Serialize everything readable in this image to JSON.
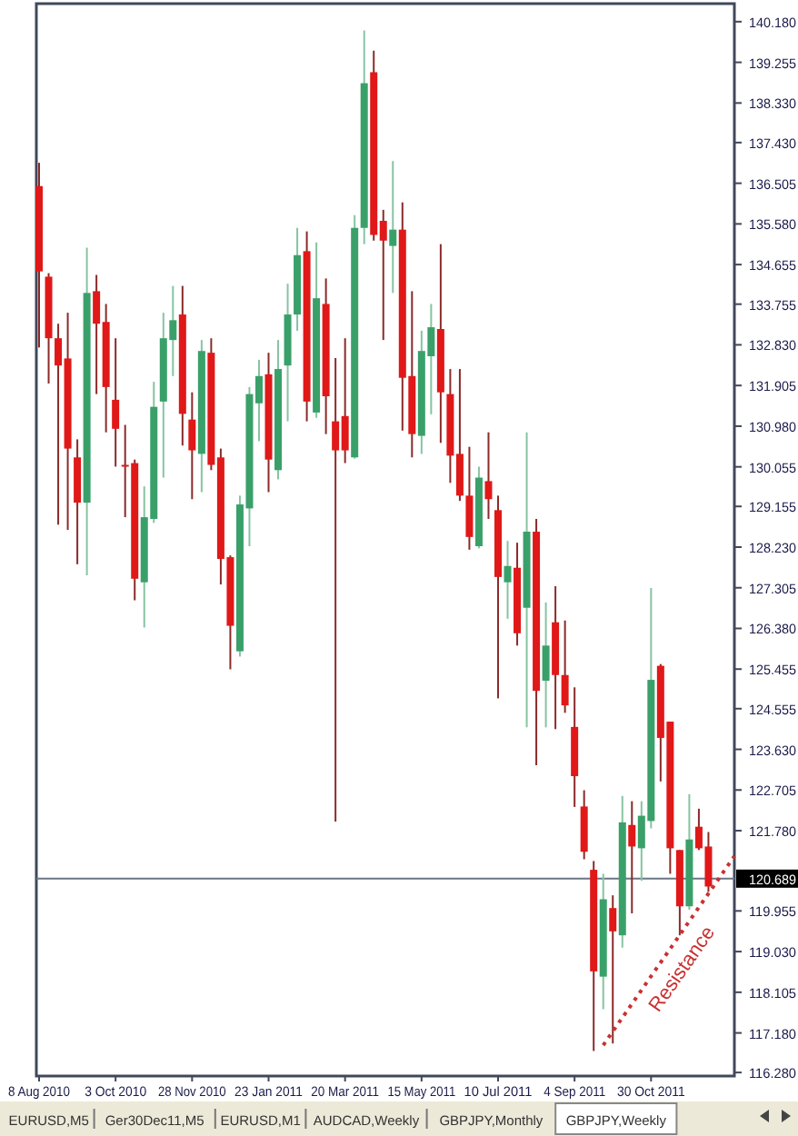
{
  "chart_data": {
    "type": "candlestick",
    "x": [
      "2010-08-08",
      "2010-08-15",
      "2010-08-22",
      "2010-08-29",
      "2010-09-05",
      "2010-09-12",
      "2010-09-19",
      "2010-09-26",
      "2010-10-03",
      "2010-10-10",
      "2010-10-17",
      "2010-10-24",
      "2010-10-31",
      "2010-11-07",
      "2010-11-14",
      "2010-11-21",
      "2010-11-28",
      "2010-12-05",
      "2010-12-12",
      "2010-12-19",
      "2010-12-26",
      "2011-01-02",
      "2011-01-09",
      "2011-01-16",
      "2011-01-23",
      "2011-01-30",
      "2011-02-06",
      "2011-02-13",
      "2011-02-20",
      "2011-02-27",
      "2011-03-06",
      "2011-03-13",
      "2011-03-20",
      "2011-03-27",
      "2011-04-03",
      "2011-04-10",
      "2011-04-17",
      "2011-04-24",
      "2011-05-01",
      "2011-05-08",
      "2011-05-15",
      "2011-05-22",
      "2011-05-29",
      "2011-06-05",
      "2011-06-12",
      "2011-06-19",
      "2011-06-26",
      "2011-07-03",
      "2011-07-10",
      "2011-07-17",
      "2011-07-24",
      "2011-07-31",
      "2011-08-07",
      "2011-08-14",
      "2011-08-21",
      "2011-08-28",
      "2011-09-04",
      "2011-09-11",
      "2011-09-18",
      "2011-09-25",
      "2011-10-02",
      "2011-10-09",
      "2011-10-16",
      "2011-10-23",
      "2011-10-30",
      "2011-11-06",
      "2011-11-13",
      "2011-11-20",
      "2011-11-27",
      "2011-12-04",
      "2011-12-11"
    ],
    "ohlc": [
      [
        136.44,
        136.97,
        132.77,
        134.5
      ],
      [
        134.38,
        134.46,
        131.95,
        132.98
      ],
      [
        132.98,
        133.31,
        128.74,
        132.36
      ],
      [
        132.52,
        133.56,
        128.62,
        130.47
      ],
      [
        130.27,
        130.68,
        127.84,
        129.24
      ],
      [
        129.24,
        135.04,
        127.59,
        134.01
      ],
      [
        134.05,
        134.42,
        131.71,
        133.31
      ],
      [
        133.35,
        133.76,
        130.84,
        131.87
      ],
      [
        131.58,
        132.98,
        130.06,
        130.92
      ],
      [
        130.1,
        131.01,
        128.91,
        130.08
      ],
      [
        130.14,
        130.22,
        127.02,
        127.51
      ],
      [
        127.43,
        129.61,
        126.4,
        128.91
      ],
      [
        128.87,
        131.99,
        128.78,
        131.42
      ],
      [
        131.54,
        133.56,
        129.81,
        132.98
      ],
      [
        132.94,
        134.17,
        132.12,
        133.39
      ],
      [
        133.52,
        134.17,
        130.54,
        131.26
      ],
      [
        131.13,
        131.75,
        129.32,
        130.43
      ],
      [
        130.35,
        132.94,
        129.48,
        132.69
      ],
      [
        132.65,
        132.98,
        129.98,
        130.1
      ],
      [
        130.27,
        130.47,
        127.38,
        127.96
      ],
      [
        128.0,
        128.04,
        125.45,
        126.44
      ],
      [
        125.86,
        129.4,
        125.74,
        129.2
      ],
      [
        129.11,
        131.87,
        128.25,
        131.71
      ],
      [
        131.5,
        132.49,
        130.64,
        132.12
      ],
      [
        132.16,
        132.65,
        129.48,
        130.22
      ],
      [
        129.98,
        132.94,
        129.77,
        132.28
      ],
      [
        132.36,
        134.22,
        131.09,
        133.52
      ],
      [
        133.52,
        135.49,
        133.15,
        134.87
      ],
      [
        134.96,
        135.41,
        131.09,
        131.54
      ],
      [
        131.29,
        135.16,
        131.17,
        133.89
      ],
      [
        133.76,
        134.34,
        130.8,
        131.66
      ],
      [
        131.09,
        132.53,
        121.99,
        130.43
      ],
      [
        131.21,
        132.98,
        130.14,
        130.43
      ],
      [
        130.27,
        135.78,
        130.24,
        135.49
      ],
      [
        135.49,
        139.98,
        135.12,
        138.78
      ],
      [
        139.03,
        139.52,
        135.2,
        135.33
      ],
      [
        135.65,
        135.9,
        132.94,
        135.2
      ],
      [
        135.08,
        137.01,
        134.01,
        135.45
      ],
      [
        135.45,
        136.07,
        130.88,
        132.08
      ],
      [
        132.12,
        134.05,
        130.27,
        130.8
      ],
      [
        130.76,
        133.15,
        130.35,
        132.69
      ],
      [
        132.57,
        133.76,
        131.25,
        133.23
      ],
      [
        133.19,
        135.12,
        130.6,
        131.75
      ],
      [
        131.71,
        132.28,
        129.69,
        130.31
      ],
      [
        130.35,
        132.28,
        129.28,
        129.4
      ],
      [
        129.4,
        130.51,
        128.17,
        128.46
      ],
      [
        128.25,
        130.06,
        128.2,
        129.81
      ],
      [
        129.73,
        130.84,
        128.87,
        129.32
      ],
      [
        129.07,
        129.4,
        124.79,
        127.55
      ],
      [
        127.43,
        128.37,
        126.6,
        127.8
      ],
      [
        127.76,
        128.33,
        125.99,
        126.27
      ],
      [
        126.85,
        130.84,
        124.13,
        128.58
      ],
      [
        128.58,
        128.87,
        123.27,
        124.96
      ],
      [
        125.19,
        126.97,
        124.13,
        125.99
      ],
      [
        126.52,
        127.34,
        124.09,
        125.32
      ],
      [
        125.32,
        126.56,
        124.46,
        124.63
      ],
      [
        124.14,
        125.04,
        122.32,
        123.02
      ],
      [
        122.33,
        122.7,
        121.13,
        121.3
      ],
      [
        120.89,
        121.09,
        116.77,
        118.58
      ],
      [
        118.46,
        120.8,
        117.72,
        120.22
      ],
      [
        120.02,
        120.31,
        116.94,
        119.49
      ],
      [
        119.4,
        122.57,
        119.12,
        121.97
      ],
      [
        121.91,
        122.45,
        119.9,
        121.42
      ],
      [
        121.38,
        122.45,
        120.64,
        122.12
      ],
      [
        122.0,
        127.3,
        121.83,
        125.21
      ],
      [
        125.53,
        125.57,
        122.9,
        123.89
      ],
      [
        124.26,
        124.26,
        120.8,
        121.38
      ],
      [
        121.34,
        121.34,
        119.4,
        120.06
      ],
      [
        120.06,
        122.61,
        119.98,
        121.58
      ],
      [
        121.87,
        122.28,
        121.34,
        121.38
      ],
      [
        121.42,
        121.75,
        120.39,
        120.51
      ]
    ],
    "series": [
      {
        "type": "line",
        "x": [
          "2011-09-25",
          "2011-12-30"
        ],
        "values": [
          116.9,
          121.2
        ],
        "color": "#c83232",
        "line_style": "dotted"
      }
    ],
    "xlim": [
      "2010-08-06",
      "2011-12-30"
    ],
    "xticks": [
      {
        "value": "2010-08-08",
        "label": "8 Aug 2010"
      },
      {
        "value": "2010-10-03",
        "label": "3 Oct 2010"
      },
      {
        "value": "2010-11-28",
        "label": "28 Nov 2010"
      },
      {
        "value": "2011-01-23",
        "label": "23 Jan 2011"
      },
      {
        "value": "2011-03-20",
        "label": "20 Mar 2011"
      },
      {
        "value": "2011-05-15",
        "label": "15 May 2011"
      },
      {
        "value": "2011-07-10",
        "label": "10 Jul 2011"
      },
      {
        "value": "2011-09-04",
        "label": "4 Sep 2011"
      },
      {
        "value": "2011-10-30",
        "label": "30 Oct 2011"
      }
    ],
    "ylim": [
      116.2,
      140.59
    ],
    "yticks": [
      {
        "value": 140.18,
        "label": "140.180"
      },
      {
        "value": 139.255,
        "label": "139.255"
      },
      {
        "value": 138.33,
        "label": "138.330"
      },
      {
        "value": 137.43,
        "label": "137.430"
      },
      {
        "value": 136.505,
        "label": "136.505"
      },
      {
        "value": 135.58,
        "label": "135.580"
      },
      {
        "value": 134.655,
        "label": "134.655"
      },
      {
        "value": 133.755,
        "label": "133.755"
      },
      {
        "value": 132.83,
        "label": "132.830"
      },
      {
        "value": 131.905,
        "label": "131.905"
      },
      {
        "value": 130.98,
        "label": "130.980"
      },
      {
        "value": 130.055,
        "label": "130.055"
      },
      {
        "value": 129.155,
        "label": "129.155"
      },
      {
        "value": 128.23,
        "label": "128.230"
      },
      {
        "value": 127.305,
        "label": "127.305"
      },
      {
        "value": 126.38,
        "label": "126.380"
      },
      {
        "value": 125.455,
        "label": "125.455"
      },
      {
        "value": 124.555,
        "label": "124.555"
      },
      {
        "value": 123.63,
        "label": "123.630"
      },
      {
        "value": 122.705,
        "label": "122.705"
      },
      {
        "value": 121.78,
        "label": "121.780"
      },
      {
        "value": 119.955,
        "label": "119.955"
      },
      {
        "value": 119.03,
        "label": "119.030"
      },
      {
        "value": 118.105,
        "label": "118.105"
      },
      {
        "value": 117.18,
        "label": "117.180"
      },
      {
        "value": 116.28,
        "label": "116.280"
      }
    ],
    "ref_lines": [
      {
        "axis": "y",
        "value": 120.689,
        "label": "120.689",
        "color": "#6b7684"
      }
    ],
    "annotations": [
      "Resistance",
      "EURUSD,M5",
      "Ger30Dec11,M5",
      "EURUSD,M1",
      "AUDCAD,Weekly",
      "GBPJPY,Monthly",
      "GBPJPY,Weekly"
    ]
  }
}
